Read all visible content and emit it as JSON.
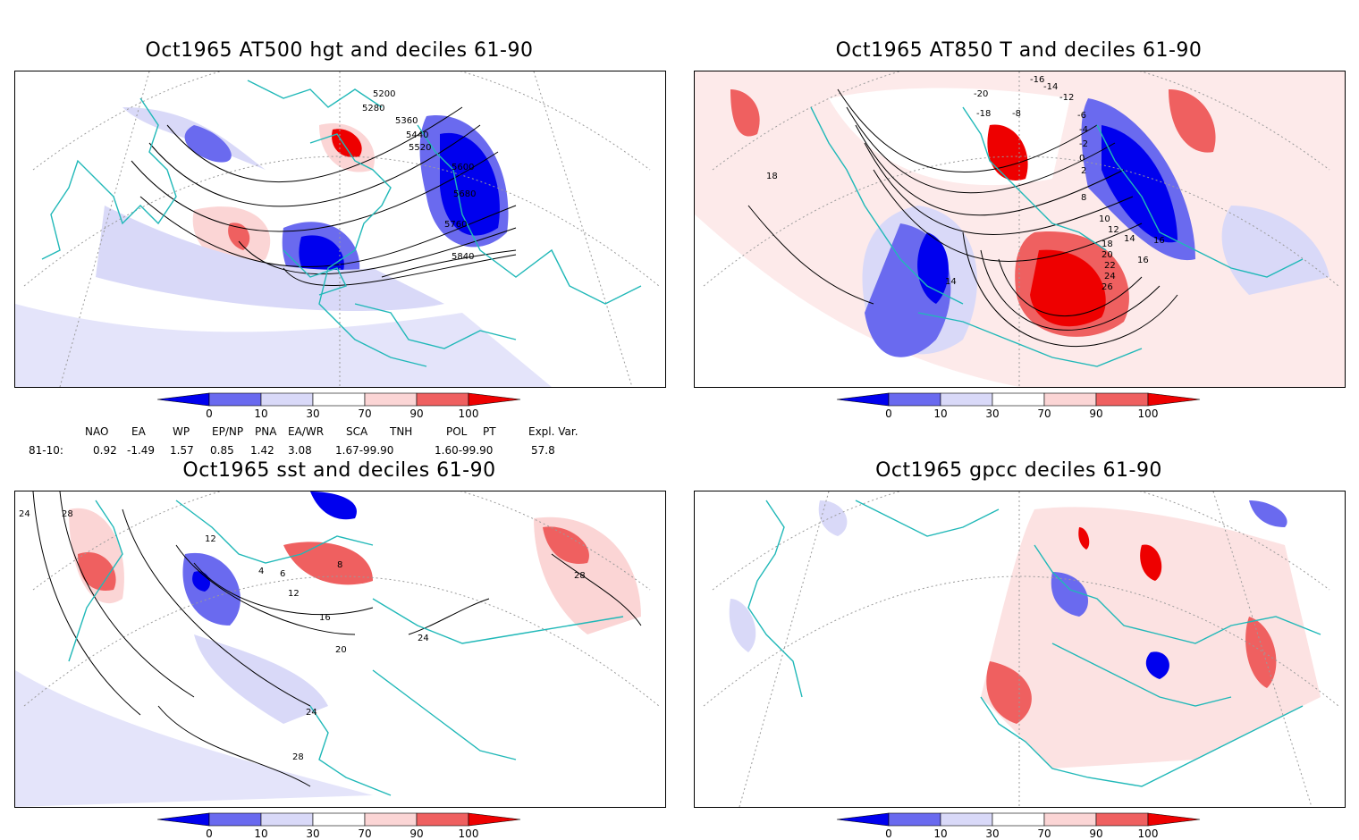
{
  "panels": [
    {
      "id": "hgt",
      "title": "Oct1965 AT500 hgt and deciles 61-90",
      "contour_labels": [
        "5200",
        "5280",
        "5360",
        "5440",
        "5520",
        "5600",
        "5680",
        "5760",
        "5840"
      ]
    },
    {
      "id": "t850",
      "title": "Oct1965 AT850 T and deciles 61-90",
      "contour_labels": [
        "-16",
        "-14",
        "-20",
        "-12",
        "-18",
        "-8",
        "-6",
        "-4",
        "-2",
        "0",
        "2",
        "8",
        "10",
        "12",
        "14",
        "16",
        "18",
        "20",
        "22",
        "24",
        "26",
        "14",
        "16",
        "18"
      ]
    },
    {
      "id": "sst",
      "title": "Oct1965 sst and deciles 61-90",
      "contour_labels": [
        "24",
        "28",
        "12",
        "4",
        "6",
        "8",
        "12",
        "16",
        "20",
        "24",
        "28",
        "24",
        "28"
      ]
    },
    {
      "id": "gpcc",
      "title": "Oct1965 gpcc deciles 61-90",
      "contour_labels": []
    }
  ],
  "colorbar": {
    "ticks": [
      "0",
      "10",
      "30",
      "70",
      "90",
      "100"
    ],
    "colors": {
      "dark_blue": "#0000ee",
      "mid_blue": "#6a6aef",
      "light_blue": "#d9d9f8",
      "white": "#ffffff",
      "light_red": "#fbd5d5",
      "mid_red": "#ef6060",
      "dark_red": "#ee0000"
    }
  },
  "indices": {
    "headers": [
      "NAO",
      "EA",
      "WP",
      "EP/NP",
      "PNA",
      "EA/WR",
      "SCA",
      "TNH",
      "POL",
      "PT",
      "Expl. Var."
    ],
    "row_label": "81-10:",
    "values": [
      "0.92",
      "-1.49",
      "1.57",
      "0.85",
      "1.42",
      "3.08",
      "1.67-99.90",
      "1.60-99.90",
      "57.8"
    ]
  },
  "map_colors": {
    "coast": "#20b8b8",
    "contour": "#000000",
    "grid": "#9a9a9a"
  }
}
